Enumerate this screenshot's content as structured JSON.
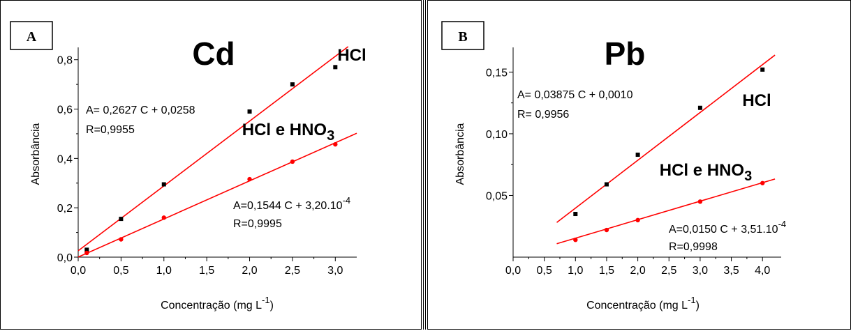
{
  "chart_data": [
    {
      "type": "scatter",
      "panel_label": "A",
      "title": "Cd",
      "xlabel": "Concentração (mg L",
      "xlabel_sup": "-1",
      "xlabel_end": ")",
      "ylabel": "Absorbância",
      "xlim": [
        0.0,
        3.25
      ],
      "ylim": [
        0.0,
        0.85
      ],
      "xticks": [
        "0,0",
        "0,5",
        "1,0",
        "1,5",
        "2,0",
        "2,5",
        "3,0"
      ],
      "yticks": [
        "0,0",
        "0,2",
        "0,4",
        "0,6",
        "0,8"
      ],
      "series": [
        {
          "name": "HCl",
          "color": "#000000",
          "x": [
            0.1,
            0.5,
            1.0,
            2.0,
            2.5,
            3.0
          ],
          "y": [
            0.03,
            0.155,
            0.295,
            0.59,
            0.7,
            0.77
          ],
          "fit_color": "#ff0000",
          "fit": {
            "slope": 0.2627,
            "intercept": 0.0258,
            "x_range": [
              0.0,
              3.15
            ]
          },
          "equation": "A= 0,2627 C + 0,0258",
          "r": "R=0,9955"
        },
        {
          "name": "HCl e HNO",
          "name_sub": "3",
          "color": "#ff0000",
          "x": [
            0.1,
            0.5,
            1.0,
            2.0,
            2.5,
            3.0
          ],
          "y": [
            0.017,
            0.072,
            0.16,
            0.316,
            0.387,
            0.457
          ],
          "fit_color": "#ff0000",
          "fit": {
            "slope": 0.1544,
            "intercept": 0.00032,
            "x_range": [
              0.0,
              3.25
            ]
          },
          "equation": "A=0,1544 C + 3,20.10",
          "equation_sup": "-4",
          "r": "R=0,9995"
        }
      ]
    },
    {
      "type": "scatter",
      "panel_label": "B",
      "title": "Pb",
      "xlabel": "Concentração (mg L",
      "xlabel_sup": "-1",
      "xlabel_end": ")",
      "ylabel": "Absorbância",
      "xlim": [
        0.0,
        4.3
      ],
      "ylim": [
        0.0,
        0.17
      ],
      "xticks": [
        "0,0",
        "0,5",
        "1,0",
        "1,5",
        "2,0",
        "2,5",
        "3,0",
        "3,5",
        "4,0"
      ],
      "yticks": [
        "0,05",
        "0,10",
        "0,15"
      ],
      "series": [
        {
          "name": "HCl",
          "color": "#000000",
          "x": [
            1.0,
            1.5,
            2.0,
            3.0,
            4.0
          ],
          "y": [
            0.035,
            0.059,
            0.083,
            0.121,
            0.152
          ],
          "fit_color": "#ff0000",
          "fit": {
            "slope": 0.03875,
            "intercept": 0.001,
            "x_range": [
              0.7,
              4.2
            ]
          },
          "equation": "A= 0,03875 C + 0,0010",
          "r": "R= 0,9956"
        },
        {
          "name": "HCl e HNO",
          "name_sub": "3",
          "color": "#ff0000",
          "x": [
            1.0,
            1.5,
            2.0,
            3.0,
            4.0
          ],
          "y": [
            0.014,
            0.022,
            0.03,
            0.045,
            0.06
          ],
          "fit_color": "#ff0000",
          "fit": {
            "slope": 0.015,
            "intercept": 0.000351,
            "x_range": [
              0.7,
              4.2
            ]
          },
          "equation": "A=0,0150 C + 3,51.10",
          "equation_sup": "-4",
          "r": "R=0,9998"
        }
      ]
    }
  ]
}
